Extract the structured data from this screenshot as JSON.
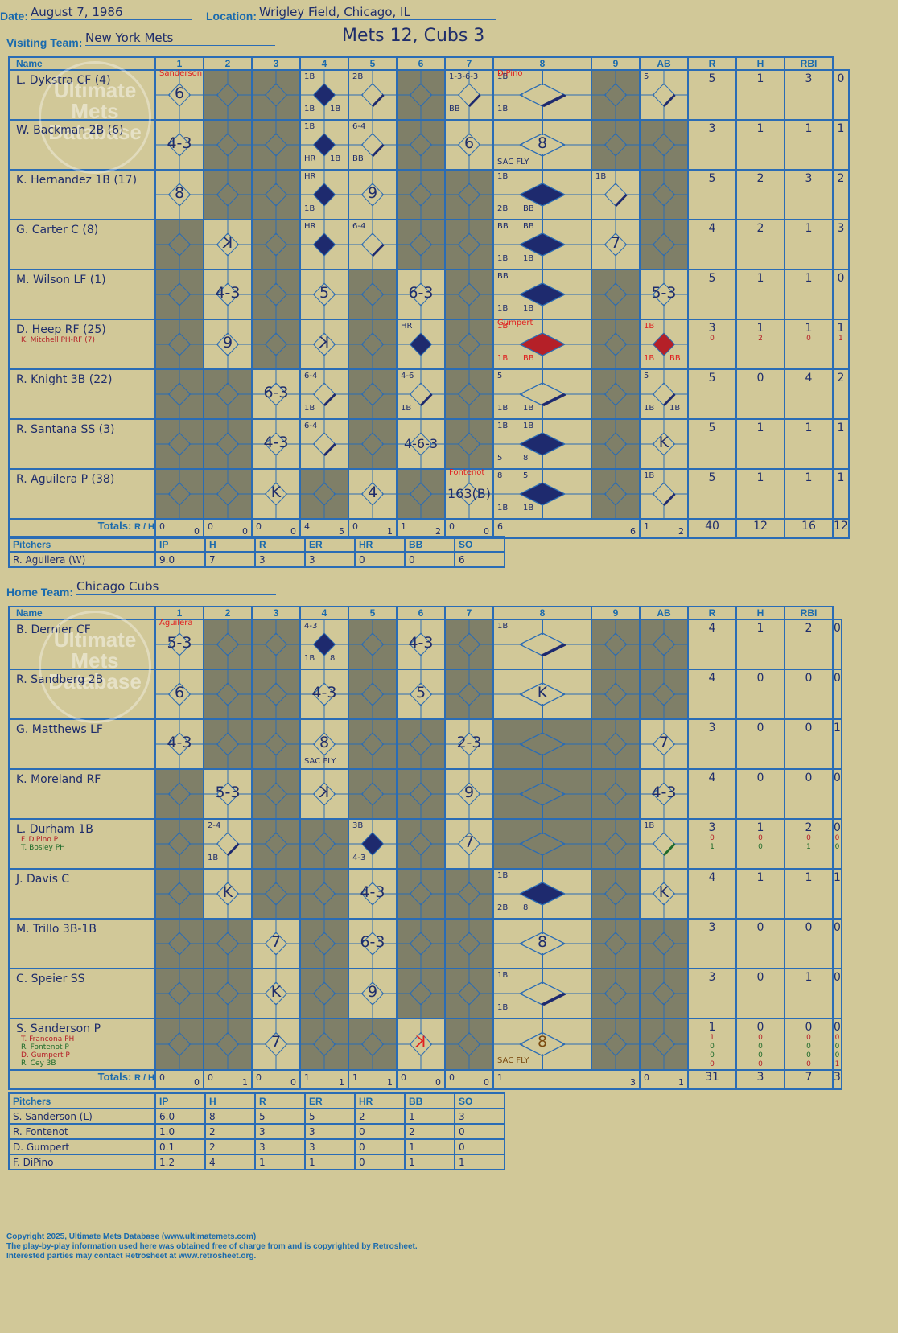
{
  "header": {
    "date_label": "Date:",
    "date": "August 7, 1986",
    "location_label": "Location:",
    "location": "Wrigley Field, Chicago, IL",
    "visiting_label": "Visiting Team:",
    "visiting_team": "New York Mets",
    "score_title": "Mets 12, Cubs 3",
    "home_label": "Home Team:",
    "home_team": "Chicago Cubs"
  },
  "columns": {
    "name": "Name",
    "innings": [
      "1",
      "2",
      "3",
      "4",
      "5",
      "6",
      "7",
      "8",
      "9"
    ],
    "stats": [
      "AB",
      "R",
      "H",
      "RBI"
    ]
  },
  "watermark": {
    "line1": "Ultimate",
    "line2": "Mets",
    "line3": "Database",
    "url": "ultimatemets.com"
  },
  "visitors": {
    "rows": [
      {
        "name": "L. Dykstra CF (4)",
        "stats": [
          "5",
          "1",
          "3",
          "0"
        ],
        "cells": [
          {
            "o": "6",
            "tag": "Sanderson"
          },
          {
            "d": 1
          },
          {
            "d": 1
          },
          {
            "run": 1,
            "n": [
              "1B",
              "1B",
              "1B"
            ]
          },
          {
            "n": [
              "2B"
            ],
            "half": 1
          },
          {
            "d": 1
          },
          {
            "n": [
              "1-3-6-3",
              "BB"
            ],
            "half": 1
          },
          {
            "n": [
              "1B",
              "1B"
            ],
            "half": 1,
            "tag": "DiPino"
          },
          {
            "d": 1
          },
          {
            "n": [
              "5"
            ],
            "half": 1
          }
        ]
      },
      {
        "name": "W. Backman 2B (6)",
        "stats": [
          "3",
          "1",
          "1",
          "1"
        ],
        "cells": [
          {
            "o": "4-3"
          },
          {
            "d": 1
          },
          {
            "d": 1
          },
          {
            "run": 1,
            "n": [
              "1B",
              "HR",
              "1B"
            ]
          },
          {
            "n": [
              "6-4",
              "BB"
            ],
            "half": 1
          },
          {
            "d": 1
          },
          {
            "o": "6"
          },
          {
            "o": "8",
            "n": [
              "SAC FLY"
            ]
          },
          {
            "d": 1
          },
          {
            "d": 1
          }
        ]
      },
      {
        "name": "K. Hernandez 1B (17)",
        "stats": [
          "5",
          "2",
          "3",
          "2"
        ],
        "cells": [
          {
            "o": "8"
          },
          {
            "d": 1
          },
          {
            "d": 1
          },
          {
            "run": 1,
            "n": [
              "HR",
              "1B"
            ]
          },
          {
            "o": "9"
          },
          {
            "d": 1
          },
          {
            "d": 1
          },
          {
            "run": 1,
            "n": [
              "1B",
              "2B",
              "BB"
            ]
          },
          {
            "n": [
              "1B"
            ],
            "half": 1
          },
          {
            "d": 1
          }
        ]
      },
      {
        "name": "G. Carter C (8)",
        "stats": [
          "4",
          "2",
          "1",
          "3"
        ],
        "cells": [
          {
            "d": 1
          },
          {
            "o": "K",
            "rev": 1
          },
          {
            "d": 1
          },
          {
            "run": 1,
            "n": [
              "HR"
            ]
          },
          {
            "n": [
              "6-4"
            ],
            "half": 1
          },
          {
            "d": 1
          },
          {
            "d": 1
          },
          {
            "run": 1,
            "n": [
              "BB",
              "1B",
              "1B",
              "BB"
            ]
          },
          {
            "o": "7"
          },
          {
            "d": 1
          }
        ]
      },
      {
        "name": "M. Wilson LF (1)",
        "stats": [
          "5",
          "1",
          "1",
          "0"
        ],
        "cells": [
          {
            "d": 1
          },
          {
            "o": "4-3"
          },
          {
            "d": 1
          },
          {
            "o": "5"
          },
          {
            "d": 1
          },
          {
            "o": "6-3"
          },
          {
            "d": 1
          },
          {
            "run": 1,
            "n": [
              "BB",
              "1B",
              "1B"
            ]
          },
          {
            "d": 1
          },
          {
            "o": "5-3"
          }
        ]
      },
      {
        "name": "D. Heep RF (25)",
        "sub": "K. Mitchell PH-RF (7)",
        "stats": [
          "3",
          "1",
          "1",
          "1"
        ],
        "substats": [
          "0",
          "2",
          "0",
          "1"
        ],
        "cells": [
          {
            "d": 1
          },
          {
            "o": "9"
          },
          {
            "d": 1
          },
          {
            "o": "K",
            "rev": 1
          },
          {
            "d": 1
          },
          {
            "run": 1,
            "n": [
              "HR"
            ]
          },
          {
            "d": 1
          },
          {
            "red": 1,
            "n": [
              "1B",
              "1B",
              "BB"
            ],
            "tag": "Gumpert"
          },
          {
            "d": 1
          },
          {
            "red": 1,
            "n": [
              "1B",
              "1B",
              "BB"
            ]
          }
        ]
      },
      {
        "name": "R. Knight 3B (22)",
        "stats": [
          "5",
          "0",
          "4",
          "2"
        ],
        "cells": [
          {
            "d": 1
          },
          {
            "d": 1
          },
          {
            "o": "6-3"
          },
          {
            "n": [
              "6-4",
              "1B"
            ],
            "half": 1
          },
          {
            "d": 1
          },
          {
            "n": [
              "4-6",
              "1B"
            ],
            "half": 1
          },
          {
            "d": 1
          },
          {
            "n": [
              "5",
              "1B",
              "1B"
            ],
            "half": 1
          },
          {
            "d": 1
          },
          {
            "n": [
              "5",
              "1B",
              "1B"
            ],
            "half": 1
          }
        ]
      },
      {
        "name": "R. Santana SS (3)",
        "stats": [
          "5",
          "1",
          "1",
          "1"
        ],
        "cells": [
          {
            "d": 1
          },
          {
            "d": 1
          },
          {
            "o": "4-3"
          },
          {
            "n": [
              "6-4"
            ],
            "half": 1
          },
          {
            "d": 1
          },
          {
            "o": "4-6-3"
          },
          {
            "d": 1
          },
          {
            "run": 1,
            "n": [
              "1B",
              "5",
              "8",
              "1B"
            ]
          },
          {
            "d": 1
          },
          {
            "o": "K"
          }
        ]
      },
      {
        "name": "R. Aguilera P (38)",
        "stats": [
          "5",
          "1",
          "1",
          "1"
        ],
        "cells": [
          {
            "d": 1
          },
          {
            "d": 1
          },
          {
            "o": "K"
          },
          {
            "d": 1
          },
          {
            "o": "4"
          },
          {
            "d": 1
          },
          {
            "o": "163(B)",
            "tag": "Fontenot"
          },
          {
            "run": 1,
            "n": [
              "8",
              "1B",
              "1B",
              "5"
            ]
          },
          {
            "d": 1
          },
          {
            "n": [
              "1B"
            ],
            "half": 1
          }
        ]
      }
    ],
    "totals_label": "Totals:",
    "totals_rh": [
      "R",
      "H"
    ],
    "totals": [
      [
        "0",
        "0"
      ],
      [
        "0",
        "0"
      ],
      [
        "0",
        "0"
      ],
      [
        "4",
        "5"
      ],
      [
        "0",
        "1"
      ],
      [
        "1",
        "2"
      ],
      [
        "0",
        "0"
      ],
      [
        "6",
        "6"
      ],
      [
        "1",
        "2"
      ]
    ],
    "totals_stats": [
      "40",
      "12",
      "16",
      "12"
    ]
  },
  "visiting_pitchers": {
    "headers": [
      "Pitchers",
      "IP",
      "H",
      "R",
      "ER",
      "HR",
      "BB",
      "SO"
    ],
    "rows": [
      [
        "R. Aguilera (W)",
        "9.0",
        "7",
        "3",
        "3",
        "0",
        "0",
        "6"
      ]
    ]
  },
  "home": {
    "rows": [
      {
        "name": "B. Dernier CF",
        "stats": [
          "4",
          "1",
          "2",
          "0"
        ],
        "cells": [
          {
            "o": "5-3",
            "tag": "Aguilera"
          },
          {
            "d": 1
          },
          {
            "d": 1
          },
          {
            "run": 1,
            "n": [
              "4-3",
              "1B",
              "8"
            ]
          },
          {
            "d": 1
          },
          {
            "o": "4-3"
          },
          {
            "d": 1
          },
          {
            "n": [
              "1B"
            ],
            "half": 1
          },
          {
            "d": 1
          },
          {
            "d": 1
          }
        ]
      },
      {
        "name": "R. Sandberg 2B",
        "stats": [
          "4",
          "0",
          "0",
          "0"
        ],
        "cells": [
          {
            "o": "6"
          },
          {
            "d": 1
          },
          {
            "d": 1
          },
          {
            "o": "4-3"
          },
          {
            "d": 1
          },
          {
            "o": "5"
          },
          {
            "d": 1
          },
          {
            "o": "K"
          },
          {
            "d": 1
          },
          {
            "d": 1
          }
        ]
      },
      {
        "name": "G. Matthews LF",
        "stats": [
          "3",
          "0",
          "0",
          "1"
        ],
        "cells": [
          {
            "o": "4-3"
          },
          {
            "d": 1
          },
          {
            "d": 1
          },
          {
            "o": "8",
            "n": [
              "SAC FLY"
            ]
          },
          {
            "d": 1
          },
          {
            "d": 1
          },
          {
            "o": "2-3"
          },
          {
            "d": 1
          },
          {
            "d": 1
          },
          {
            "o": "7"
          }
        ]
      },
      {
        "name": "K. Moreland RF",
        "stats": [
          "4",
          "0",
          "0",
          "0"
        ],
        "cells": [
          {
            "d": 1
          },
          {
            "o": "5-3"
          },
          {
            "d": 1
          },
          {
            "o": "K",
            "rev": 1
          },
          {
            "d": 1
          },
          {
            "d": 1
          },
          {
            "o": "9"
          },
          {
            "d": 1
          },
          {
            "d": 1
          },
          {
            "o": "4-3"
          }
        ]
      },
      {
        "name": "L. Durham 1B",
        "sub": "F. DiPino P",
        "sub2": "T. Bosley PH",
        "stats": [
          "3",
          "1",
          "2",
          "0"
        ],
        "substats": [
          "0",
          "0",
          "0",
          "0"
        ],
        "substats2": [
          "1",
          "0",
          "1",
          "0"
        ],
        "cells": [
          {
            "d": 1
          },
          {
            "n": [
              "2-4",
              "1B"
            ],
            "half": 1
          },
          {
            "d": 1
          },
          {
            "d": 1
          },
          {
            "run": 1,
            "n": [
              "3B",
              "4-3"
            ]
          },
          {
            "d": 1
          },
          {
            "o": "7"
          },
          {
            "d": 1
          },
          {
            "d": 1
          },
          {
            "n": [
              "1B"
            ],
            "half": 1,
            "green": 1
          }
        ]
      },
      {
        "name": "J. Davis C",
        "stats": [
          "4",
          "1",
          "1",
          "1"
        ],
        "cells": [
          {
            "d": 1
          },
          {
            "o": "K"
          },
          {
            "d": 1
          },
          {
            "d": 1
          },
          {
            "o": "4-3"
          },
          {
            "d": 1
          },
          {
            "d": 1
          },
          {
            "run": 1,
            "n": [
              "1B",
              "2B",
              "8"
            ]
          },
          {
            "d": 1
          },
          {
            "o": "K"
          }
        ]
      },
      {
        "name": "M. Trillo 3B-1B",
        "stats": [
          "3",
          "0",
          "0",
          "0"
        ],
        "cells": [
          {
            "d": 1
          },
          {
            "d": 1
          },
          {
            "o": "7"
          },
          {
            "d": 1
          },
          {
            "o": "6-3"
          },
          {
            "d": 1
          },
          {
            "d": 1
          },
          {
            "o": "8"
          },
          {
            "d": 1
          },
          {
            "d": 1
          }
        ]
      },
      {
        "name": "C. Speier SS",
        "stats": [
          "3",
          "0",
          "1",
          "0"
        ],
        "cells": [
          {
            "d": 1
          },
          {
            "d": 1
          },
          {
            "o": "K"
          },
          {
            "d": 1
          },
          {
            "o": "9"
          },
          {
            "d": 1
          },
          {
            "d": 1
          },
          {
            "n": [
              "1B",
              "1B"
            ],
            "half": 1
          },
          {
            "d": 1
          },
          {
            "d": 1
          }
        ]
      },
      {
        "name": "S. Sanderson P",
        "sub": "T. Francona PH",
        "sub2": "R. Fontenot P",
        "sub3": "D. Gumpert P",
        "sub4": "R. Cey 3B",
        "stats": [
          "1",
          "0",
          "0",
          "0"
        ],
        "substats": [
          "1",
          "0",
          "0",
          "0"
        ],
        "substats2": [
          "0",
          "0",
          "0",
          "0"
        ],
        "substats3": [
          "0",
          "0",
          "0",
          "0"
        ],
        "substats4": [
          "0",
          "0",
          "0",
          "1"
        ],
        "cells": [
          {
            "d": 1
          },
          {
            "d": 1
          },
          {
            "o": "7"
          },
          {
            "d": 1
          },
          {
            "d": 1
          },
          {
            "o": "K",
            "rev": 1,
            "redo": 1
          },
          {
            "d": 1
          },
          {
            "o": "8",
            "n": [
              "SAC FLY"
            ],
            "brown": 1
          },
          {
            "d": 1
          },
          {
            "d": 1
          }
        ]
      }
    ],
    "totals_label": "Totals:",
    "totals_rh": [
      "R",
      "H"
    ],
    "totals": [
      [
        "0",
        "0"
      ],
      [
        "0",
        "1"
      ],
      [
        "0",
        "0"
      ],
      [
        "1",
        "1"
      ],
      [
        "1",
        "1"
      ],
      [
        "0",
        "0"
      ],
      [
        "0",
        "0"
      ],
      [
        "1",
        "3"
      ],
      [
        "0",
        "1"
      ]
    ],
    "totals_stats": [
      "31",
      "3",
      "7",
      "3"
    ]
  },
  "home_pitchers": {
    "headers": [
      "Pitchers",
      "IP",
      "H",
      "R",
      "ER",
      "HR",
      "BB",
      "SO"
    ],
    "rows": [
      [
        "S. Sanderson (L)",
        "6.0",
        "8",
        "5",
        "5",
        "2",
        "1",
        "3"
      ],
      [
        "R. Fontenot",
        "1.0",
        "2",
        "3",
        "3",
        "0",
        "2",
        "0"
      ],
      [
        "D. Gumpert",
        "0.1",
        "2",
        "3",
        "3",
        "0",
        "1",
        "0"
      ],
      [
        "F. DiPino",
        "1.2",
        "4",
        "1",
        "1",
        "0",
        "1",
        "1"
      ]
    ]
  },
  "footer": {
    "line1": "Copyright 2025, Ultimate Mets Database (www.ultimatemets.com)",
    "line2": "The play-by-play information used here was obtained free of charge from and is copyrighted by Retrosheet.",
    "line3": "Interested parties may contact Retrosheet at www.retrosheet.org."
  },
  "colors": {
    "bg": "#d1c898",
    "grid": "#2a6cb5",
    "dark": "#7f7f68",
    "run": "#1e2a6e",
    "red": "#b52028",
    "ink": "#1f2d6b"
  }
}
